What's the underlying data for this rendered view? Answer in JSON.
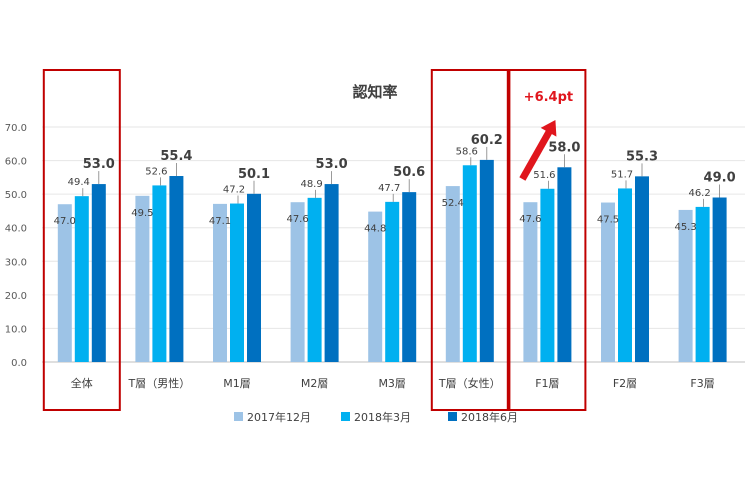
{
  "chart_data": {
    "type": "bar",
    "title": "認知率",
    "categories": [
      "全体",
      "T層（男性）",
      "M1層",
      "M2層",
      "M3層",
      "T層（女性）",
      "F1層",
      "F2層",
      "F3層"
    ],
    "series": [
      {
        "name": "2017年12月",
        "color": "#9dc3e6",
        "values": [
          47.0,
          49.5,
          47.1,
          47.6,
          44.8,
          52.4,
          47.6,
          47.5,
          45.3
        ]
      },
      {
        "name": "2018年3月",
        "color": "#00b0f0",
        "values": [
          49.4,
          52.6,
          47.2,
          48.9,
          47.7,
          58.6,
          51.6,
          51.7,
          46.2
        ]
      },
      {
        "name": "2018年6月",
        "color": "#0070c0",
        "values": [
          53.0,
          55.4,
          50.1,
          53.0,
          50.6,
          60.2,
          58.0,
          55.3,
          49.0
        ]
      }
    ],
    "ylim": [
      0,
      70
    ],
    "yticks": [
      "0.0",
      "10.0",
      "20.0",
      "30.0",
      "40.0",
      "50.0",
      "60.0",
      "70.0"
    ],
    "grid": true,
    "legend_position": "bottom",
    "highlighted_categories": [
      "全体",
      "T層（女性）",
      "F1層"
    ],
    "annotation": {
      "text": "+6.4pt",
      "category": "F1層"
    }
  }
}
